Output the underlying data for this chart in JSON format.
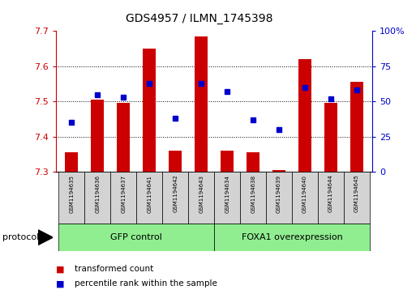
{
  "title": "GDS4957 / ILMN_1745398",
  "samples": [
    "GSM1194635",
    "GSM1194636",
    "GSM1194637",
    "GSM1194641",
    "GSM1194642",
    "GSM1194643",
    "GSM1194634",
    "GSM1194638",
    "GSM1194639",
    "GSM1194640",
    "GSM1194644",
    "GSM1194645"
  ],
  "transformed_count": [
    7.355,
    7.505,
    7.495,
    7.65,
    7.36,
    7.685,
    7.36,
    7.355,
    7.305,
    7.62,
    7.495,
    7.555
  ],
  "percentile_rank": [
    35,
    55,
    53,
    63,
    38,
    63,
    57,
    37,
    30,
    60,
    52,
    58
  ],
  "ylim_left": [
    7.3,
    7.7
  ],
  "ylim_right": [
    0,
    100
  ],
  "yticks_left": [
    7.3,
    7.4,
    7.5,
    7.6,
    7.7
  ],
  "yticks_right": [
    0,
    25,
    50,
    75,
    100
  ],
  "group1_label": "GFP control",
  "group1_count": 6,
  "group2_label": "FOXA1 overexpression",
  "group2_count": 6,
  "group_color": "#90EE90",
  "bar_color": "#CC0000",
  "marker_color": "#0000CC",
  "bar_baseline": 7.3,
  "bar_width": 0.5,
  "tick_color_left": "#CC0000",
  "tick_color_right": "#0000CC",
  "grid_lines": [
    7.4,
    7.5,
    7.6
  ],
  "sample_box_color": "#d3d3d3",
  "legend_items": [
    {
      "label": "transformed count",
      "color": "#CC0000"
    },
    {
      "label": "percentile rank within the sample",
      "color": "#0000CC"
    }
  ]
}
